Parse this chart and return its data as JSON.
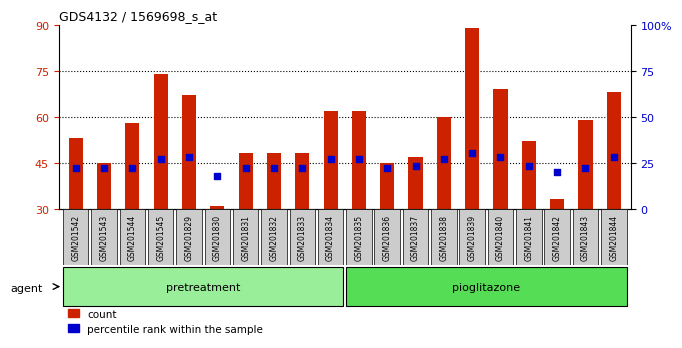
{
  "title": "GDS4132 / 1569698_s_at",
  "samples": [
    "GSM201542",
    "GSM201543",
    "GSM201544",
    "GSM201545",
    "GSM201829",
    "GSM201830",
    "GSM201831",
    "GSM201832",
    "GSM201833",
    "GSM201834",
    "GSM201835",
    "GSM201836",
    "GSM201837",
    "GSM201838",
    "GSM201839",
    "GSM201840",
    "GSM201841",
    "GSM201842",
    "GSM201843",
    "GSM201844"
  ],
  "count_values": [
    53,
    45,
    58,
    74,
    67,
    31,
    48,
    48,
    48,
    62,
    62,
    45,
    47,
    60,
    89,
    69,
    52,
    33,
    59,
    68
  ],
  "percentile_values": [
    22,
    22,
    22,
    27,
    28,
    18,
    22,
    22,
    22,
    27,
    27,
    22,
    23,
    27,
    30,
    28,
    23,
    20,
    22,
    28
  ],
  "pretreatment_count": 10,
  "pioglitazone_count": 10,
  "ylim_left": [
    30,
    90
  ],
  "ylim_right": [
    0,
    100
  ],
  "yticks_left": [
    30,
    45,
    60,
    75,
    90
  ],
  "yticks_right": [
    0,
    25,
    50,
    75,
    100
  ],
  "ytick_right_labels": [
    "0",
    "25",
    "50",
    "75",
    "100%"
  ],
  "hlines": [
    45,
    60,
    75
  ],
  "bar_color": "#cc2200",
  "percentile_color": "#0000cc",
  "background_plot": "#ffffff",
  "background_labels": "#cccccc",
  "background_pretreatment": "#99ee99",
  "background_pioglitazone": "#55dd55",
  "bar_width": 0.5,
  "legend_count_label": "count",
  "legend_percentile_label": "percentile rank within the sample",
  "agent_label": "agent",
  "pretreatment_label": "pretreatment",
  "pioglitazone_label": "pioglitazone"
}
